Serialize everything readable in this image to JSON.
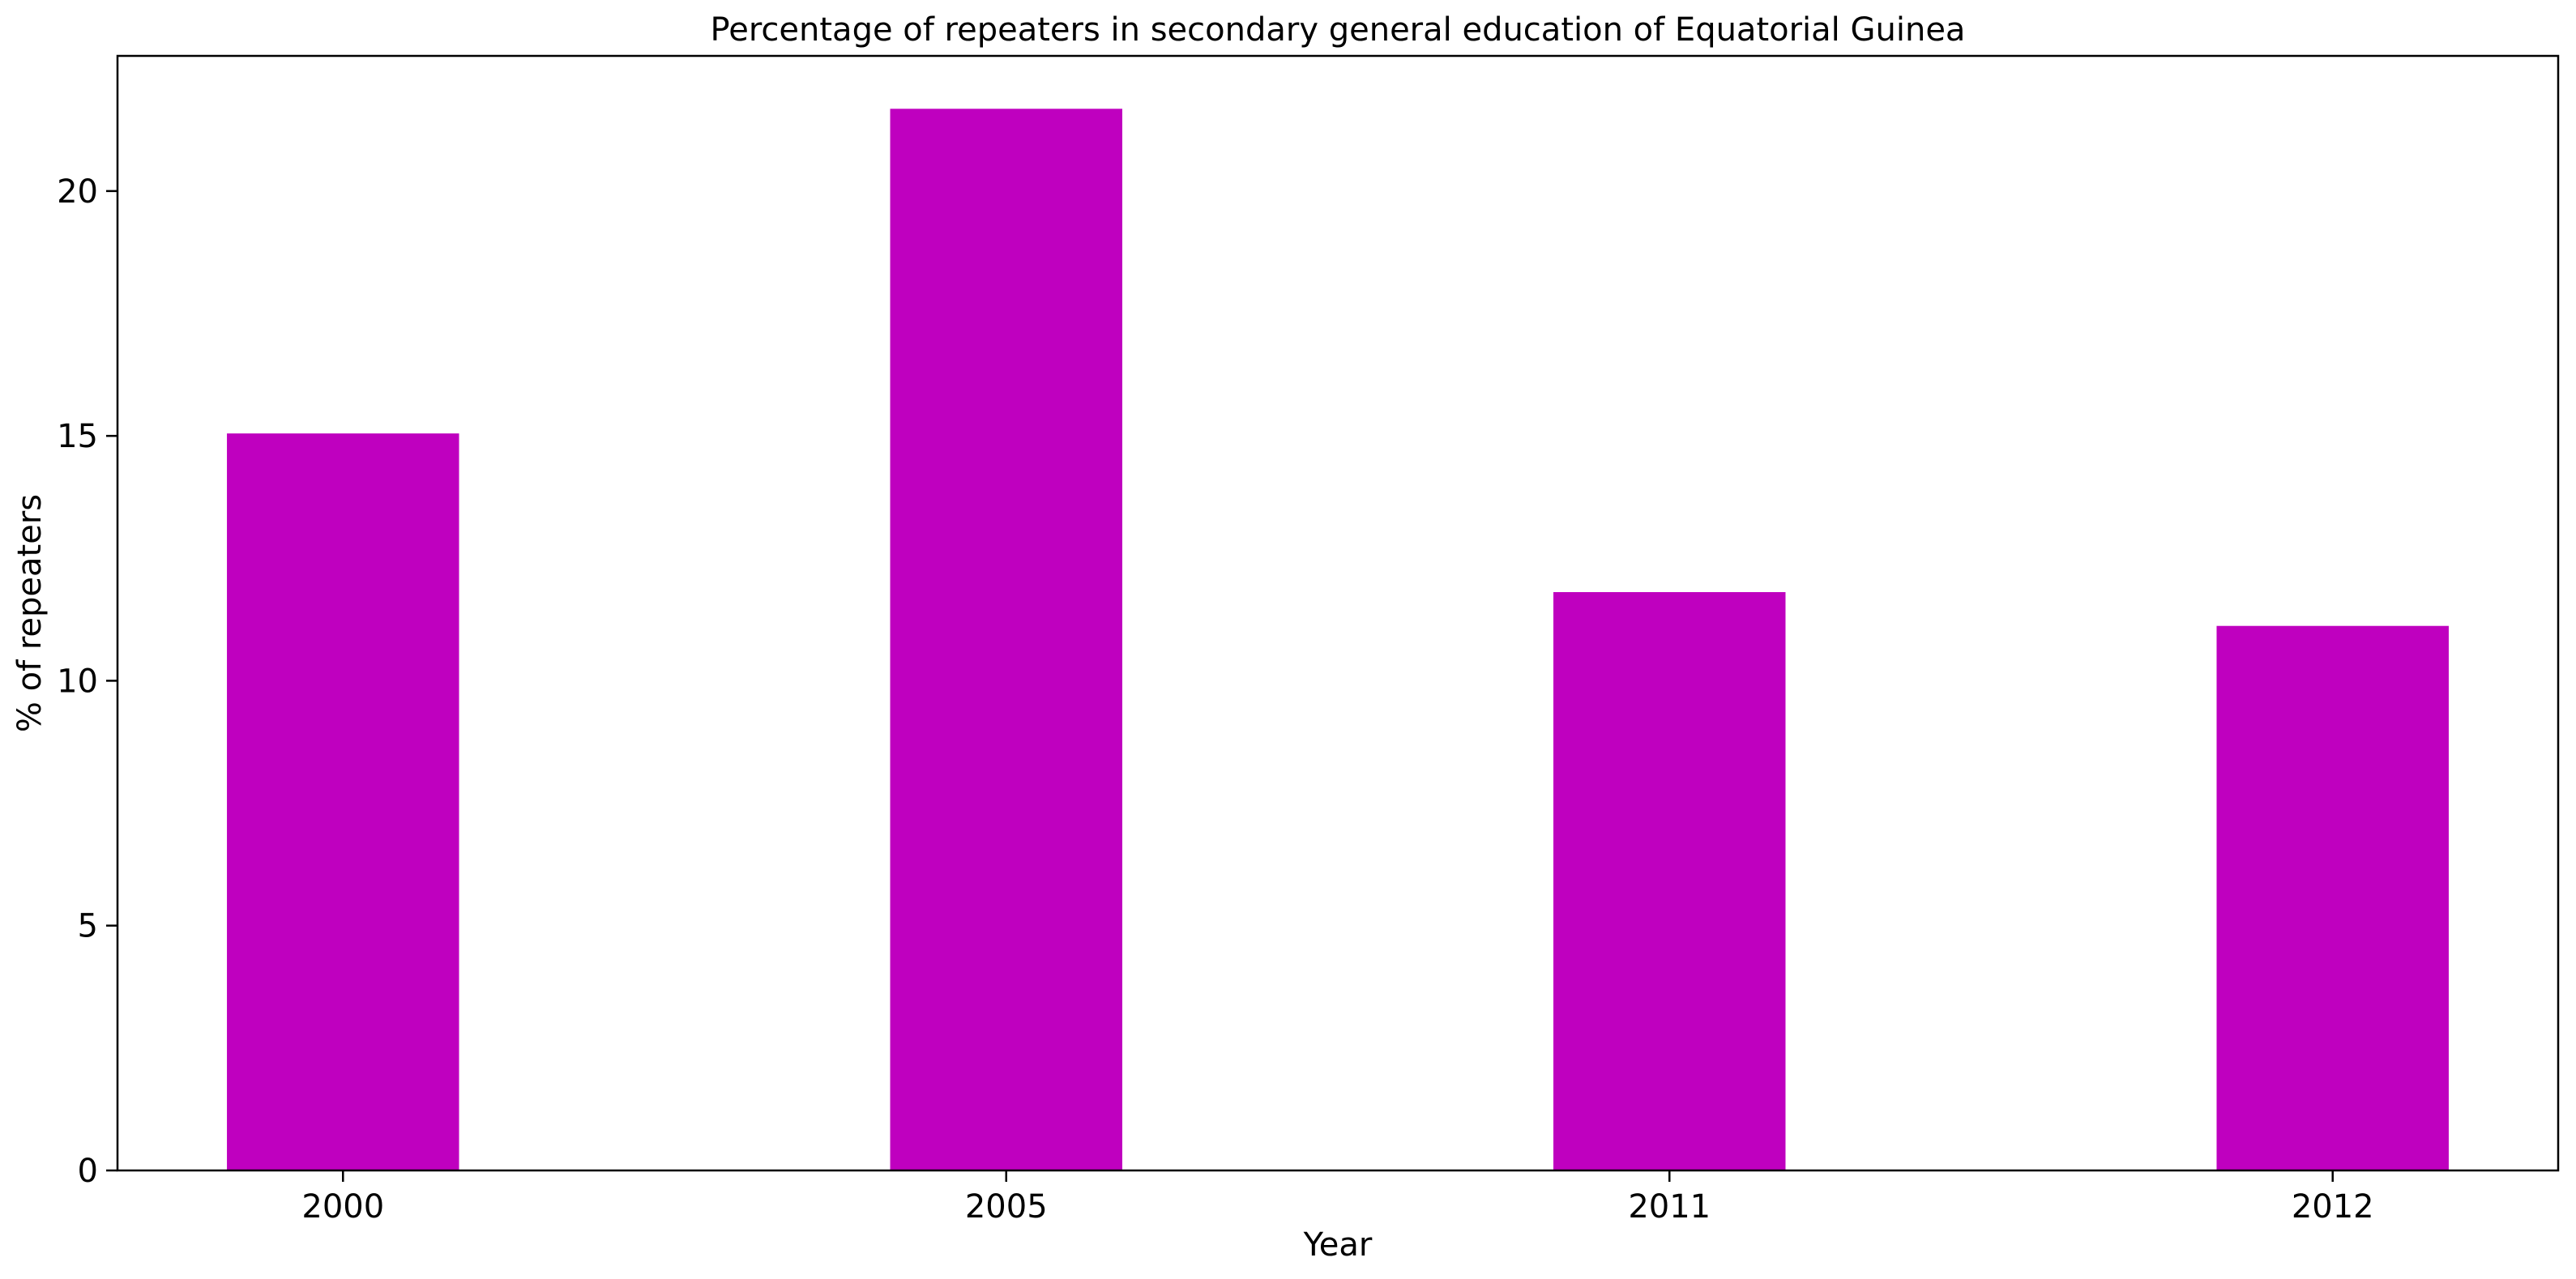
{
  "chart_data": {
    "type": "bar",
    "title": "Percentage of repeaters in secondary general education of Equatorial Guinea",
    "xlabel": "Year",
    "ylabel": "% of repeaters",
    "categories": [
      "2000",
      "2005",
      "2011",
      "2012"
    ],
    "values": [
      15.05,
      21.68,
      11.81,
      11.12
    ],
    "ylim": [
      0,
      22.76
    ],
    "yticks": [
      0,
      5,
      10,
      15,
      20
    ],
    "bar_color": "#bf00bf",
    "grid": false,
    "legend": "none"
  }
}
